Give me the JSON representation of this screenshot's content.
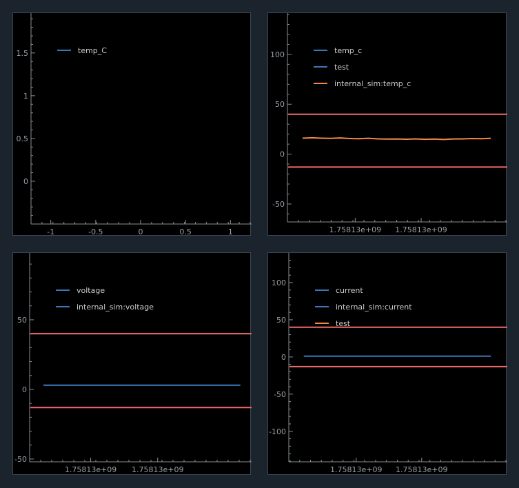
{
  "chart_data": [
    {
      "type": "line",
      "legend": [
        "temp_C"
      ],
      "series": [
        {
          "name": "temp_C",
          "color": "#3b78b8",
          "values": []
        }
      ],
      "xticks": [
        {
          "v": -1,
          "label": "-1"
        },
        {
          "v": -0.5,
          "label": "-0.5"
        },
        {
          "v": 0,
          "label": "0"
        },
        {
          "v": 0.5,
          "label": "0.5"
        },
        {
          "v": 1,
          "label": "1"
        }
      ],
      "yticks": [
        {
          "v": 0,
          "label": "0"
        },
        {
          "v": 0.5,
          "label": "0.5"
        },
        {
          "v": 1,
          "label": "1"
        },
        {
          "v": 1.5,
          "label": "1.5"
        }
      ],
      "xlim": [
        -1.22,
        1.22
      ],
      "ylim": [
        -0.5,
        1.95
      ],
      "hlines": []
    },
    {
      "type": "line",
      "legend": [
        "temp_c",
        "test",
        "internal_sim:temp_c"
      ],
      "series": [
        {
          "name": "temp_c",
          "color": "#3b78b8",
          "values": []
        },
        {
          "name": "test",
          "color": "#3b78b8",
          "values": []
        },
        {
          "name": "internal_sim:temp_c",
          "color": "#f28a43",
          "x": [
            0.0,
            0.05,
            0.1,
            0.15,
            0.2,
            0.25,
            0.3,
            0.35,
            0.4,
            0.45,
            0.5,
            0.55,
            0.6,
            0.65,
            0.7,
            0.75,
            0.8,
            0.85,
            0.9,
            0.95,
            1.0
          ],
          "y": [
            16,
            16.4,
            16,
            15.8,
            16.2,
            15.6,
            15.4,
            15.9,
            15.3,
            15.1,
            15.2,
            14.9,
            15.3,
            14.8,
            15.1,
            14.7,
            15.2,
            15.3,
            15.6,
            15.4,
            15.9
          ]
        }
      ],
      "xticks": [
        {
          "v": 0.28,
          "label": "1.75813e+09"
        },
        {
          "v": 0.63,
          "label": "1.75813e+09"
        }
      ],
      "yticks": [
        {
          "v": -50,
          "label": "-50"
        },
        {
          "v": 0,
          "label": "0"
        },
        {
          "v": 50,
          "label": "50"
        },
        {
          "v": 100,
          "label": "100"
        }
      ],
      "xlim": [
        -0.08,
        1.08
      ],
      "ylim": [
        -68,
        140
      ],
      "hlines": [
        {
          "y": 40,
          "color": "#f36a6a"
        },
        {
          "y": -13,
          "color": "#f36a6a"
        }
      ]
    },
    {
      "type": "line",
      "legend": [
        "voltage",
        "internal_sim:voltage"
      ],
      "series": [
        {
          "name": "voltage",
          "color": "#3b78b8",
          "x": [
            0,
            1
          ],
          "y": [
            3,
            3
          ]
        },
        {
          "name": "internal_sim:voltage",
          "color": "#3b78b8",
          "values": []
        }
      ],
      "xticks": [
        {
          "v": 0.24,
          "label": "1.75813e+09"
        },
        {
          "v": 0.58,
          "label": "1.75813e+09"
        }
      ],
      "yticks": [
        {
          "v": -50,
          "label": "-50"
        },
        {
          "v": 0,
          "label": "0"
        },
        {
          "v": 50,
          "label": "50"
        }
      ],
      "xlim": [
        -0.07,
        1.05
      ],
      "ylim": [
        -52,
        97
      ],
      "hlines": [
        {
          "y": 40,
          "color": "#f36a6a"
        },
        {
          "y": -13,
          "color": "#f36a6a"
        }
      ]
    },
    {
      "type": "line",
      "legend": [
        "current",
        "internal_sim:current",
        "test"
      ],
      "series": [
        {
          "name": "current",
          "color": "#3b78b8",
          "x": [
            0,
            1
          ],
          "y": [
            1,
            1
          ]
        },
        {
          "name": "internal_sim:current",
          "color": "#3b78b8",
          "values": []
        },
        {
          "name": "test",
          "color": "#f28a43",
          "values": []
        }
      ],
      "xticks": [
        {
          "v": 0.28,
          "label": "1.75813e+09"
        },
        {
          "v": 0.63,
          "label": "1.75813e+09"
        }
      ],
      "yticks": [
        {
          "v": -100,
          "label": "-100"
        },
        {
          "v": -50,
          "label": "-50"
        },
        {
          "v": 0,
          "label": "0"
        },
        {
          "v": 50,
          "label": "50"
        },
        {
          "v": 100,
          "label": "100"
        }
      ],
      "xlim": [
        -0.08,
        1.08
      ],
      "ylim": [
        -141,
        138
      ],
      "hlines": [
        {
          "y": 40,
          "color": "#f36a6a"
        },
        {
          "y": -13,
          "color": "#f36a6a"
        }
      ]
    }
  ]
}
